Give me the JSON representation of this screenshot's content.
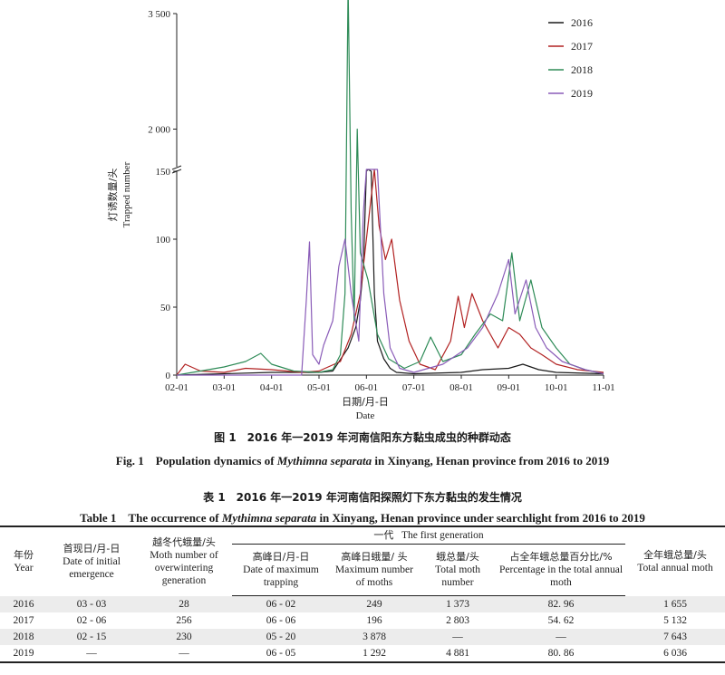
{
  "figure": {
    "caption_cn": "图 1　2016 年一2019 年河南信阳东方黏虫成虫的种群动态",
    "caption_en_prefix": "Fig. 1　Population dynamics of ",
    "caption_en_species": "Mythimna separata",
    "caption_en_suffix": " in Xinyang, Henan province from 2016 to 2019"
  },
  "chart_data": {
    "type": "line",
    "xlabel_cn": "日期/月-日",
    "xlabel_en": "Date",
    "ylabel_cn": "灯诱数量/头",
    "ylabel_en": "Trapped number",
    "x_ticks": [
      "02-01",
      "03-01",
      "04-01",
      "05-01",
      "06-01",
      "07-01",
      "08-01",
      "09-01",
      "10-01",
      "11-01"
    ],
    "y_ticks_lower": [
      "0",
      "50",
      "100",
      "150"
    ],
    "y_ticks_upper": [
      "2 000",
      "3 500"
    ],
    "y_axis_break": true,
    "ylim_lower": [
      0,
      150
    ],
    "ylim_upper": [
      1500,
      3500
    ],
    "legend_position": "top-right",
    "series": [
      {
        "name": "2016",
        "color": "#1a1a1a",
        "points": [
          [
            "02-01",
            0
          ],
          [
            "03-01",
            1
          ],
          [
            "04-01",
            2
          ],
          [
            "05-01",
            2
          ],
          [
            "05-10",
            3
          ],
          [
            "05-20",
            20
          ],
          [
            "05-25",
            35
          ],
          [
            "05-28",
            55
          ],
          [
            "05-30",
            80
          ],
          [
            "06-01",
            150
          ],
          [
            "06-02",
            249
          ],
          [
            "06-04",
            150
          ],
          [
            "06-06",
            60
          ],
          [
            "06-08",
            25
          ],
          [
            "06-12",
            12
          ],
          [
            "06-16",
            5
          ],
          [
            "06-20",
            2
          ],
          [
            "07-01",
            1
          ],
          [
            "08-01",
            2
          ],
          [
            "08-15",
            4
          ],
          [
            "09-01",
            5
          ],
          [
            "09-10",
            8
          ],
          [
            "09-20",
            4
          ],
          [
            "10-01",
            2
          ],
          [
            "11-01",
            1
          ]
        ]
      },
      {
        "name": "2017",
        "color": "#b22222",
        "points": [
          [
            "02-01",
            0
          ],
          [
            "02-06",
            8
          ],
          [
            "02-15",
            3
          ],
          [
            "03-01",
            2
          ],
          [
            "03-15",
            5
          ],
          [
            "04-01",
            4
          ],
          [
            "04-20",
            2
          ],
          [
            "05-01",
            3
          ],
          [
            "05-15",
            10
          ],
          [
            "05-22",
            30
          ],
          [
            "05-28",
            60
          ],
          [
            "06-01",
            100
          ],
          [
            "06-06",
            196
          ],
          [
            "06-09",
            110
          ],
          [
            "06-13",
            85
          ],
          [
            "06-17",
            100
          ],
          [
            "06-22",
            55
          ],
          [
            "06-28",
            25
          ],
          [
            "07-05",
            8
          ],
          [
            "07-15",
            4
          ],
          [
            "07-25",
            25
          ],
          [
            "07-30",
            58
          ],
          [
            "08-03",
            35
          ],
          [
            "08-08",
            60
          ],
          [
            "08-15",
            40
          ],
          [
            "08-25",
            20
          ],
          [
            "09-01",
            35
          ],
          [
            "09-08",
            30
          ],
          [
            "09-15",
            20
          ],
          [
            "09-22",
            15
          ],
          [
            "10-01",
            8
          ],
          [
            "10-15",
            4
          ],
          [
            "11-01",
            2
          ]
        ]
      },
      {
        "name": "2018",
        "color": "#2e8b57",
        "points": [
          [
            "02-01",
            0
          ],
          [
            "02-15",
            3
          ],
          [
            "03-01",
            6
          ],
          [
            "03-15",
            10
          ],
          [
            "03-25",
            16
          ],
          [
            "04-01",
            8
          ],
          [
            "04-15",
            3
          ],
          [
            "05-01",
            2
          ],
          [
            "05-10",
            4
          ],
          [
            "05-15",
            15
          ],
          [
            "05-18",
            60
          ],
          [
            "05-20",
            3878
          ],
          [
            "05-22",
            120
          ],
          [
            "05-24",
            40
          ],
          [
            "05-26",
            2000
          ],
          [
            "05-28",
            90
          ],
          [
            "06-02",
            70
          ],
          [
            "06-08",
            30
          ],
          [
            "06-15",
            12
          ],
          [
            "06-25",
            5
          ],
          [
            "07-05",
            10
          ],
          [
            "07-12",
            28
          ],
          [
            "07-20",
            10
          ],
          [
            "08-01",
            15
          ],
          [
            "08-10",
            30
          ],
          [
            "08-20",
            45
          ],
          [
            "08-28",
            40
          ],
          [
            "09-03",
            90
          ],
          [
            "09-08",
            40
          ],
          [
            "09-15",
            70
          ],
          [
            "09-22",
            35
          ],
          [
            "10-01",
            20
          ],
          [
            "10-10",
            8
          ],
          [
            "10-20",
            4
          ],
          [
            "11-01",
            1
          ]
        ]
      },
      {
        "name": "2019",
        "color": "#8a5cb8",
        "points": [
          [
            "02-01",
            0
          ],
          [
            "03-01",
            0
          ],
          [
            "04-01",
            0
          ],
          [
            "04-20",
            0
          ],
          [
            "04-23",
            55
          ],
          [
            "04-25",
            98
          ],
          [
            "04-27",
            15
          ],
          [
            "05-01",
            8
          ],
          [
            "05-04",
            22
          ],
          [
            "05-10",
            40
          ],
          [
            "05-14",
            80
          ],
          [
            "05-18",
            100
          ],
          [
            "05-22",
            60
          ],
          [
            "05-27",
            25
          ],
          [
            "05-30",
            120
          ],
          [
            "06-01",
            300
          ],
          [
            "06-05",
            1292
          ],
          [
            "06-08",
            160
          ],
          [
            "06-12",
            60
          ],
          [
            "06-16",
            20
          ],
          [
            "06-22",
            5
          ],
          [
            "07-01",
            2
          ],
          [
            "07-20",
            8
          ],
          [
            "08-05",
            20
          ],
          [
            "08-15",
            35
          ],
          [
            "08-25",
            60
          ],
          [
            "09-01",
            85
          ],
          [
            "09-05",
            45
          ],
          [
            "09-12",
            70
          ],
          [
            "09-18",
            35
          ],
          [
            "09-25",
            20
          ],
          [
            "10-05",
            10
          ],
          [
            "10-20",
            4
          ],
          [
            "11-01",
            1
          ]
        ]
      }
    ]
  },
  "table": {
    "title_cn": "表 1　2016 年一2019 年河南信阳探照灯下东方黏虫的发生情况",
    "title_en_prefix": "Table 1　The occurrence of ",
    "title_en_species": "Mythimna separata",
    "title_en_suffix": " in Xinyang, Henan province under searchlight from 2016 to 2019",
    "headers": {
      "year_cn": "年份",
      "year_en": "Year",
      "emergence_cn": "首现日/月-日",
      "emergence_en": "Date of initial emergence",
      "overwinter_cn": "越冬代蛾量/头",
      "overwinter_en": "Moth number of overwintering generation",
      "first_gen_cn": "一代",
      "first_gen_en": "The first generation",
      "peak_date_cn": "高峰日/月-日",
      "peak_date_en": "Date of maximum trapping",
      "peak_moths_cn": "高峰日蛾量/ 头",
      "peak_moths_en": "Maximum number of moths",
      "total_moth_cn": "蛾总量/头",
      "total_moth_en": "Total moth number",
      "percentage_cn": "占全年蛾总量百分比/%",
      "percentage_en": "Percentage in the total annual moth",
      "annual_cn": "全年蛾总量/头",
      "annual_en": "Total annual moth"
    },
    "rows": [
      {
        "year": "2016",
        "emergence": "03 - 03",
        "overwinter": "28",
        "peak_date": "06 - 02",
        "peak_moths": "249",
        "total_moth": "1 373",
        "percentage": "82. 96",
        "annual": "1 655"
      },
      {
        "year": "2017",
        "emergence": "02 - 06",
        "overwinter": "256",
        "peak_date": "06 - 06",
        "peak_moths": "196",
        "total_moth": "2 803",
        "percentage": "54. 62",
        "annual": "5 132"
      },
      {
        "year": "2018",
        "emergence": "02 - 15",
        "overwinter": "230",
        "peak_date": "05 - 20",
        "peak_moths": "3 878",
        "total_moth": "—",
        "percentage": "—",
        "annual": "7 643"
      },
      {
        "year": "2019",
        "emergence": "—",
        "overwinter": "—",
        "peak_date": "06 - 05",
        "peak_moths": "1 292",
        "total_moth": "4 881",
        "percentage": "80. 86",
        "annual": "6 036"
      }
    ]
  }
}
